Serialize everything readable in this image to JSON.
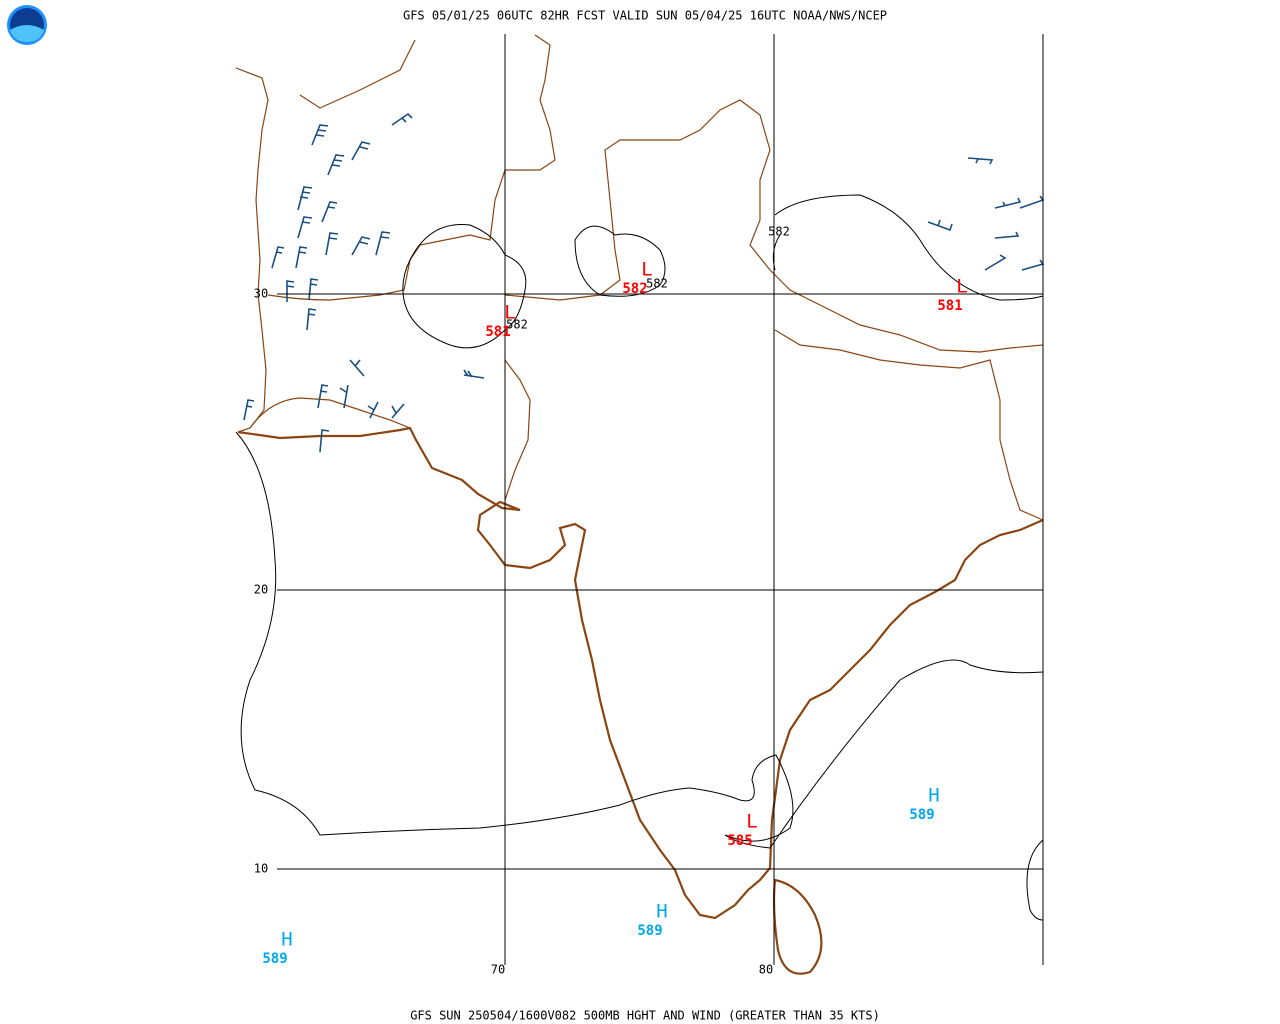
{
  "header": {
    "title": "GFS 05/01/25 06UTC 82HR FCST VALID SUN 05/04/25 16UTC NOAA/NWS/NCEP"
  },
  "footer": {
    "caption": "GFS SUN 250504/1600V082 500MB HGHT AND WIND (GREATER THAN 35 KTS)"
  },
  "map": {
    "latitudes": [
      30,
      20,
      10
    ],
    "longitudes": [
      70,
      80
    ],
    "contour_labels": [
      582,
      582,
      582
    ],
    "pressure_centers": [
      {
        "symbol": "L",
        "value": 581
      },
      {
        "symbol": "L",
        "value": 582
      },
      {
        "symbol": "L",
        "value": 581
      },
      {
        "symbol": "L",
        "value": 585
      },
      {
        "symbol": "H",
        "value": 589
      },
      {
        "symbol": "H",
        "value": 589
      },
      {
        "symbol": "H",
        "value": 589
      }
    ]
  }
}
